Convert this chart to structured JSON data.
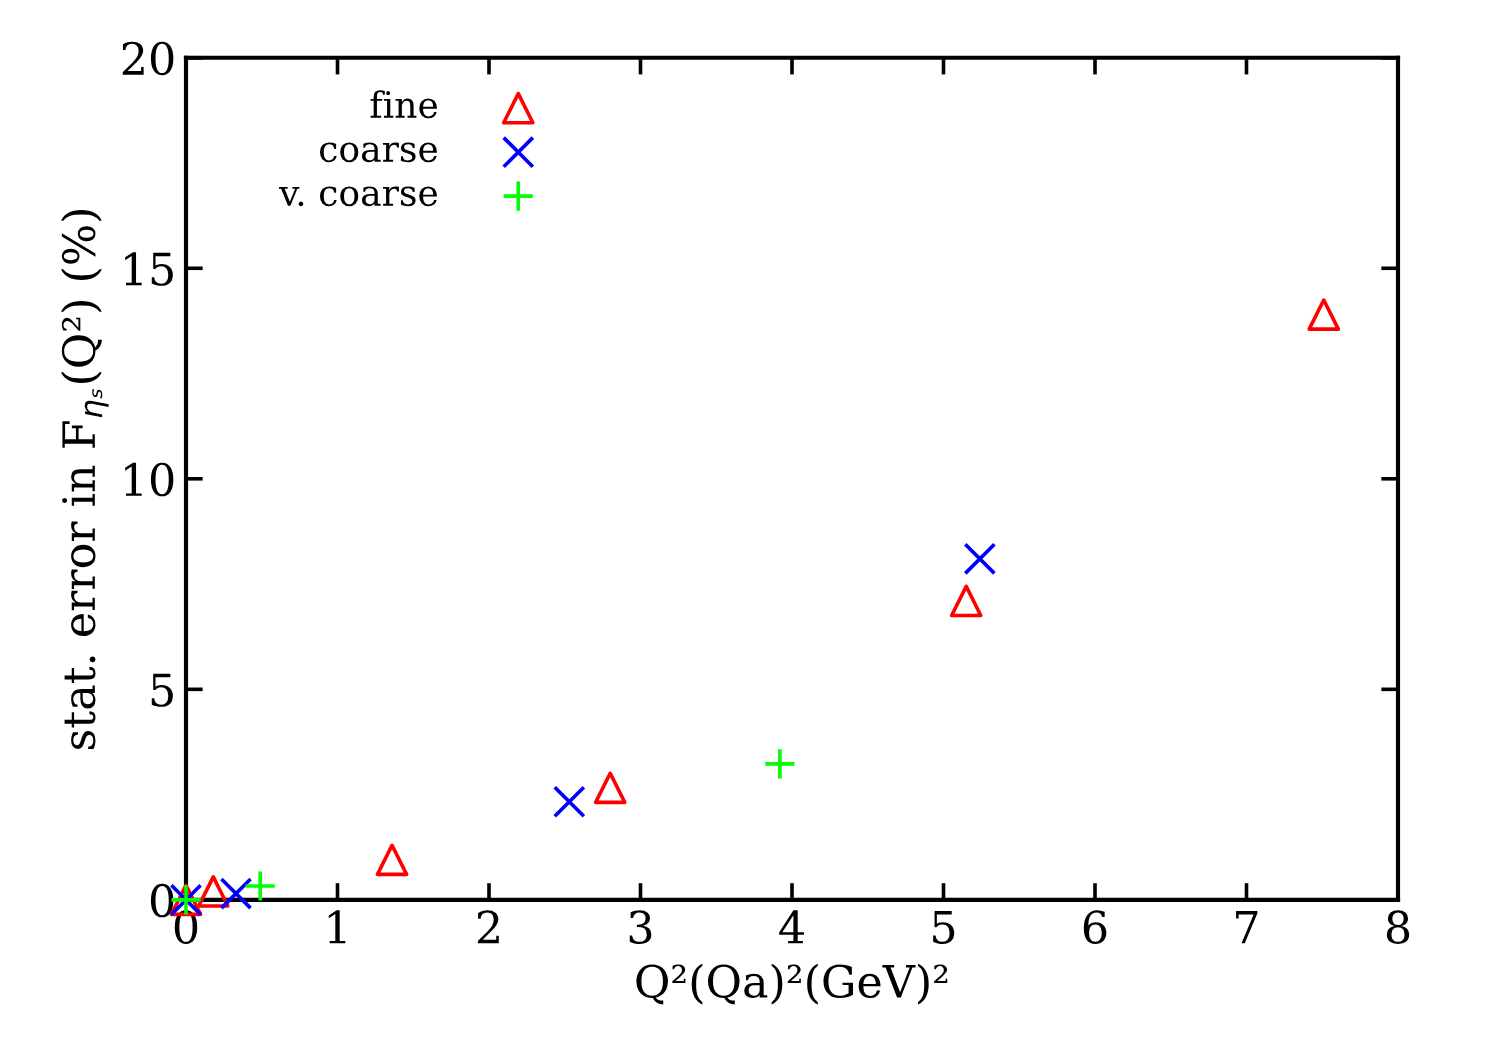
{
  "chart_data": {
    "type": "scatter",
    "xlabel": "Q²(Qa)²(GeV)²",
    "ylabel": "stat. error in F$_{ηₛ}$(Q²) (%)",
    "xlim": [
      0,
      8
    ],
    "ylim": [
      0,
      20
    ],
    "xticks": [
      0,
      1,
      2,
      3,
      4,
      5,
      6,
      7,
      8
    ],
    "yticks": [
      0,
      5,
      10,
      15,
      20
    ],
    "grid": false,
    "legend": "top left",
    "series": [
      {
        "name": "fine",
        "color": "#ff0000",
        "marker": "triangle",
        "x": [
          0,
          0.18,
          1.36,
          2.8,
          5.15,
          7.51
        ],
        "values": [
          0,
          0.2,
          0.95,
          2.66,
          7.1,
          13.9
        ]
      },
      {
        "name": "coarse",
        "color": "#0000ff",
        "marker": "cross",
        "x": [
          0,
          0.33,
          2.53,
          5.24
        ],
        "values": [
          0,
          0.15,
          2.33,
          8.1
        ]
      },
      {
        "name": "v. coarse",
        "color": "#00ff00",
        "marker": "plus",
        "x": [
          0,
          0.49,
          3.92
        ],
        "values": [
          0,
          0.33,
          3.23
        ]
      }
    ]
  }
}
